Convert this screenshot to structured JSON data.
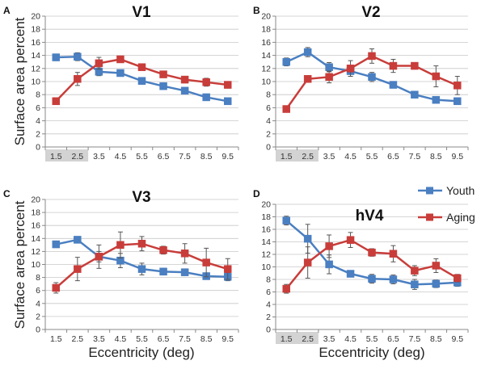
{
  "colors": {
    "youth": "#4a7fc1",
    "aging": "#c83d3a",
    "highlight": "#d3d3d3"
  },
  "legend": {
    "youth": "Youth",
    "aging": "Aging"
  },
  "shared_ylabel": "Surface area percent",
  "shared_xlabel": "Eccentricity (deg)",
  "chart_data": [
    {
      "type": "line",
      "panel": "A",
      "title": "V1",
      "x": [
        1.5,
        2.5,
        3.5,
        4.5,
        5.5,
        6.5,
        7.5,
        8.5,
        9.5
      ],
      "x_tick_labels": [
        "1.5",
        "2.5",
        "3.5",
        "4.5",
        "5.5",
        "6.5",
        "7.5",
        "8.5",
        "9.5"
      ],
      "highlighted_x_ticks": [
        "1.5",
        "2.5"
      ],
      "ylim": [
        0,
        20
      ],
      "y_ticks": [
        0,
        2,
        4,
        6,
        8,
        10,
        12,
        14,
        16,
        18,
        20
      ],
      "grid": true,
      "series": [
        {
          "name": "Youth",
          "values": [
            13.7,
            13.8,
            11.5,
            11.3,
            10.1,
            9.3,
            8.6,
            7.6,
            7.0
          ],
          "errors": [
            0.5,
            0.6,
            0.6,
            0.4,
            0.3,
            0.4,
            0.4,
            0.3,
            0.3
          ]
        },
        {
          "name": "Aging",
          "values": [
            7.0,
            10.4,
            12.8,
            13.4,
            12.2,
            11.1,
            10.3,
            9.9,
            9.5
          ],
          "errors": [
            0.5,
            1.0,
            0.9,
            0.4,
            0.4,
            0.4,
            0.5,
            0.6,
            0.5
          ]
        }
      ]
    },
    {
      "type": "line",
      "panel": "B",
      "title": "V2",
      "x": [
        1.5,
        2.5,
        3.5,
        4.5,
        5.5,
        6.5,
        7.5,
        8.5,
        9.5
      ],
      "x_tick_labels": [
        "1.5",
        "2.5",
        "3.5",
        "4.5",
        "5.5",
        "6.5",
        "7.5",
        "8.5",
        "9.5"
      ],
      "highlighted_x_ticks": [
        "1.5",
        "2.5"
      ],
      "ylim": [
        0,
        20
      ],
      "y_ticks": [
        0,
        2,
        4,
        6,
        8,
        10,
        12,
        14,
        16,
        18,
        20
      ],
      "grid": true,
      "series": [
        {
          "name": "Youth",
          "values": [
            13.0,
            14.5,
            12.2,
            11.6,
            10.7,
            9.5,
            8.0,
            7.2,
            7.0
          ],
          "errors": [
            0.6,
            0.7,
            0.7,
            0.8,
            0.7,
            0.4,
            0.3,
            0.4,
            0.3
          ]
        },
        {
          "name": "Aging",
          "values": [
            5.8,
            10.4,
            10.7,
            12.0,
            13.9,
            12.4,
            12.4,
            10.8,
            9.4
          ],
          "errors": [
            0.4,
            0.5,
            0.9,
            1.2,
            1.1,
            1.0,
            0.5,
            1.6,
            1.4
          ]
        }
      ]
    },
    {
      "type": "line",
      "panel": "C",
      "title": "V3",
      "x": [
        1.5,
        2.5,
        3.5,
        4.5,
        5.5,
        6.5,
        7.5,
        8.5,
        9.5
      ],
      "x_tick_labels": [
        "1.5",
        "2.5",
        "3.5",
        "4.5",
        "5.5",
        "6.5",
        "7.5",
        "8.5",
        "9.5"
      ],
      "highlighted_x_ticks": [],
      "ylim": [
        0,
        20
      ],
      "y_ticks": [
        0,
        2,
        4,
        6,
        8,
        10,
        12,
        14,
        16,
        18,
        20
      ],
      "grid": true,
      "series": [
        {
          "name": "Youth",
          "values": [
            13.1,
            13.8,
            11.2,
            10.6,
            9.3,
            8.9,
            8.8,
            8.2,
            8.1
          ],
          "errors": [
            0.5,
            0.4,
            0.8,
            1.1,
            0.9,
            0.5,
            0.5,
            0.5,
            0.6
          ]
        },
        {
          "name": "Aging",
          "values": [
            6.4,
            9.3,
            11.2,
            13.0,
            13.2,
            12.2,
            11.7,
            10.3,
            9.3
          ],
          "errors": [
            0.8,
            1.8,
            1.8,
            2.0,
            1.1,
            0.6,
            1.5,
            2.2,
            1.6
          ]
        }
      ]
    },
    {
      "type": "line",
      "panel": "D",
      "title": "hV4",
      "x": [
        1.5,
        2.5,
        3.5,
        4.5,
        5.5,
        6.5,
        7.5,
        8.5,
        9.5
      ],
      "x_tick_labels": [
        "1.5",
        "2.5",
        "3.5",
        "4.5",
        "5.5",
        "6.5",
        "7.5",
        "8.5",
        "9.5"
      ],
      "highlighted_x_ticks": [
        "1.5",
        "2.5"
      ],
      "ylim": [
        0,
        20
      ],
      "y_ticks": [
        0,
        2,
        4,
        6,
        8,
        10,
        12,
        14,
        16,
        18,
        20
      ],
      "grid": true,
      "legend_position": "top-right",
      "series": [
        {
          "name": "Youth",
          "values": [
            17.4,
            14.5,
            10.4,
            8.9,
            8.1,
            8.0,
            7.2,
            7.3,
            7.5
          ],
          "errors": [
            0.7,
            2.3,
            1.5,
            0.3,
            0.7,
            0.7,
            0.8,
            0.6,
            0.6
          ]
        },
        {
          "name": "Aging",
          "values": [
            6.5,
            10.7,
            13.3,
            14.3,
            12.3,
            12.1,
            9.4,
            10.2,
            8.2
          ],
          "errors": [
            0.7,
            2.5,
            1.8,
            1.2,
            0.6,
            1.3,
            0.8,
            1.1,
            0.6
          ]
        }
      ]
    }
  ]
}
